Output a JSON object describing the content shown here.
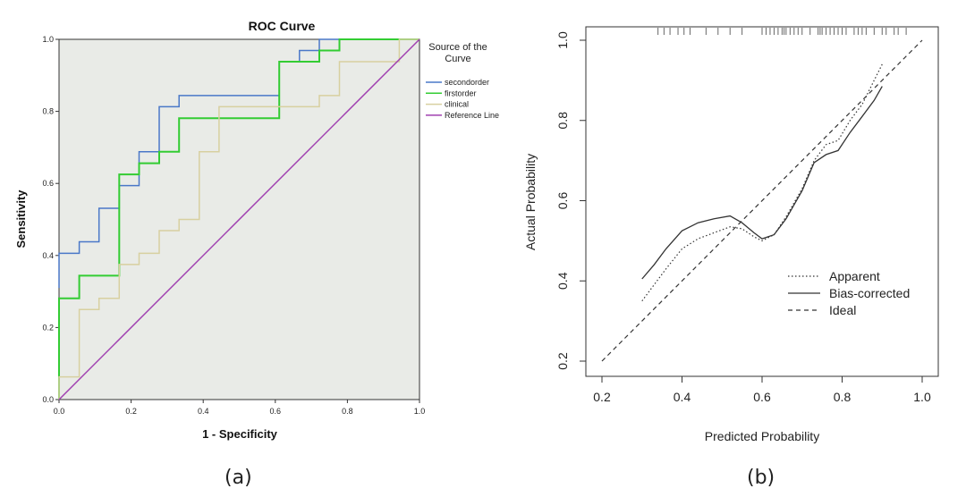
{
  "captions": [
    "(a)",
    "(b)"
  ],
  "chart_data": [
    {
      "type": "line",
      "title": "ROC Curve",
      "xlabel": "1 - Specificity",
      "ylabel": "Sensitivity",
      "xlim": [
        0,
        1
      ],
      "ylim": [
        0,
        1
      ],
      "xticks": [
        "0.0",
        "0.2",
        "0.4",
        "0.6",
        "0.8",
        "1.0"
      ],
      "yticks": [
        "0.0",
        "0.2",
        "0.4",
        "0.6",
        "0.8",
        "1.0"
      ],
      "grid": false,
      "background": "#e9ebe7",
      "legend_title": "Source of the Curve",
      "legend_position": "right-outside",
      "series": [
        {
          "name": "secondorder",
          "color": "#4a78c8",
          "points": [
            [
              0,
              0.31
            ],
            [
              0,
              0.406
            ],
            [
              0.056,
              0.406
            ],
            [
              0.056,
              0.438
            ],
            [
              0.111,
              0.438
            ],
            [
              0.111,
              0.531
            ],
            [
              0.167,
              0.531
            ],
            [
              0.167,
              0.594
            ],
            [
              0.222,
              0.594
            ],
            [
              0.222,
              0.688
            ],
            [
              0.278,
              0.688
            ],
            [
              0.278,
              0.813
            ],
            [
              0.333,
              0.813
            ],
            [
              0.333,
              0.844
            ],
            [
              0.611,
              0.844
            ],
            [
              0.611,
              0.938
            ],
            [
              0.667,
              0.938
            ],
            [
              0.667,
              0.969
            ],
            [
              0.722,
              0.969
            ],
            [
              0.722,
              1.0
            ],
            [
              1.0,
              1.0
            ]
          ]
        },
        {
          "name": "firstorder",
          "color": "#33cc33",
          "points": [
            [
              0,
              0
            ],
            [
              0,
              0.281
            ],
            [
              0.056,
              0.281
            ],
            [
              0.056,
              0.344
            ],
            [
              0.167,
              0.344
            ],
            [
              0.167,
              0.625
            ],
            [
              0.222,
              0.625
            ],
            [
              0.222,
              0.656
            ],
            [
              0.278,
              0.656
            ],
            [
              0.278,
              0.688
            ],
            [
              0.333,
              0.688
            ],
            [
              0.333,
              0.781
            ],
            [
              0.611,
              0.781
            ],
            [
              0.611,
              0.938
            ],
            [
              0.722,
              0.938
            ],
            [
              0.722,
              0.969
            ],
            [
              0.778,
              0.969
            ],
            [
              0.778,
              1.0
            ],
            [
              1.0,
              1.0
            ]
          ]
        },
        {
          "name": "clinical",
          "color": "#d8d0a0",
          "points": [
            [
              0,
              0
            ],
            [
              0,
              0.063
            ],
            [
              0.056,
              0.063
            ],
            [
              0.056,
              0.25
            ],
            [
              0.111,
              0.25
            ],
            [
              0.111,
              0.281
            ],
            [
              0.167,
              0.281
            ],
            [
              0.167,
              0.375
            ],
            [
              0.222,
              0.375
            ],
            [
              0.222,
              0.406
            ],
            [
              0.278,
              0.406
            ],
            [
              0.278,
              0.469
            ],
            [
              0.333,
              0.469
            ],
            [
              0.333,
              0.5
            ],
            [
              0.389,
              0.5
            ],
            [
              0.389,
              0.688
            ],
            [
              0.444,
              0.688
            ],
            [
              0.444,
              0.813
            ],
            [
              0.722,
              0.813
            ],
            [
              0.722,
              0.844
            ],
            [
              0.778,
              0.844
            ],
            [
              0.778,
              0.938
            ],
            [
              0.944,
              0.938
            ],
            [
              0.944,
              1.0
            ],
            [
              1.0,
              1.0
            ]
          ]
        },
        {
          "name": "Reference Line",
          "color": "#a040b0",
          "points": [
            [
              0,
              0
            ],
            [
              1,
              1
            ]
          ]
        }
      ]
    },
    {
      "type": "line",
      "title": "",
      "xlabel": "Predicted Probability",
      "ylabel": "Actual Probability",
      "xlim": [
        0.2,
        1.0
      ],
      "ylim": [
        0.2,
        1.0
      ],
      "xticks": [
        "0.2",
        "0.4",
        "0.6",
        "0.8",
        "1.0"
      ],
      "yticks": [
        "0.2",
        "0.4",
        "0.6",
        "0.8",
        "1.0"
      ],
      "grid": false,
      "legend_position": "bottom-right",
      "rug": [
        0.34,
        0.355,
        0.37,
        0.39,
        0.405,
        0.42,
        0.46,
        0.49,
        0.52,
        0.55,
        0.6,
        0.61,
        0.62,
        0.63,
        0.64,
        0.65,
        0.655,
        0.66,
        0.67,
        0.68,
        0.69,
        0.7,
        0.72,
        0.74,
        0.745,
        0.75,
        0.76,
        0.77,
        0.78,
        0.79,
        0.8,
        0.81,
        0.83,
        0.84,
        0.85,
        0.86,
        0.88,
        0.9,
        0.91,
        0.93,
        0.94,
        0.96
      ],
      "series": [
        {
          "name": "Apparent",
          "dash": "dotted",
          "points": [
            [
              0.3,
              0.35
            ],
            [
              0.33,
              0.39
            ],
            [
              0.36,
              0.43
            ],
            [
              0.4,
              0.48
            ],
            [
              0.44,
              0.505
            ],
            [
              0.48,
              0.52
            ],
            [
              0.52,
              0.535
            ],
            [
              0.55,
              0.53
            ],
            [
              0.58,
              0.51
            ],
            [
              0.6,
              0.5
            ],
            [
              0.63,
              0.515
            ],
            [
              0.66,
              0.56
            ],
            [
              0.7,
              0.63
            ],
            [
              0.73,
              0.7
            ],
            [
              0.76,
              0.74
            ],
            [
              0.79,
              0.75
            ],
            [
              0.82,
              0.8
            ],
            [
              0.85,
              0.84
            ],
            [
              0.88,
              0.9
            ],
            [
              0.9,
              0.94
            ]
          ]
        },
        {
          "name": "Bias-corrected",
          "dash": "solid",
          "points": [
            [
              0.3,
              0.405
            ],
            [
              0.33,
              0.44
            ],
            [
              0.36,
              0.48
            ],
            [
              0.4,
              0.525
            ],
            [
              0.44,
              0.545
            ],
            [
              0.48,
              0.555
            ],
            [
              0.52,
              0.562
            ],
            [
              0.55,
              0.545
            ],
            [
              0.58,
              0.52
            ],
            [
              0.6,
              0.505
            ],
            [
              0.63,
              0.515
            ],
            [
              0.66,
              0.555
            ],
            [
              0.7,
              0.625
            ],
            [
              0.73,
              0.695
            ],
            [
              0.76,
              0.715
            ],
            [
              0.79,
              0.725
            ],
            [
              0.82,
              0.77
            ],
            [
              0.85,
              0.81
            ],
            [
              0.88,
              0.85
            ],
            [
              0.9,
              0.885
            ]
          ]
        },
        {
          "name": "Ideal",
          "dash": "dashed",
          "points": [
            [
              0.2,
              0.2
            ],
            [
              1.0,
              1.0
            ]
          ]
        }
      ]
    }
  ]
}
